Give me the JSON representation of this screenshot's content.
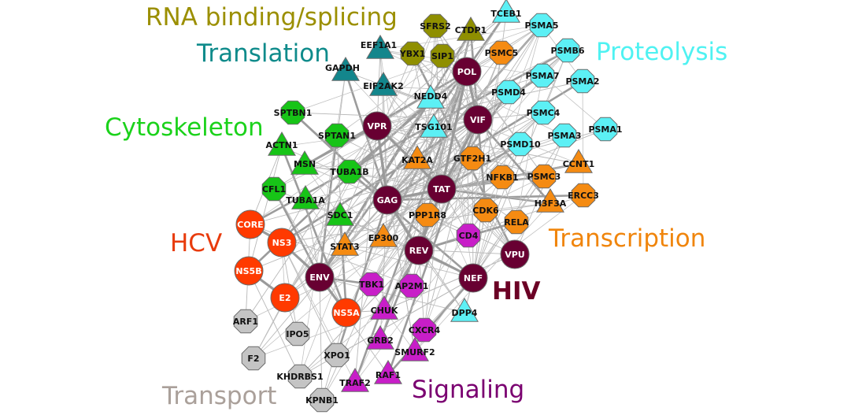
{
  "groups": {
    "rna": {
      "label": "RNA binding/splicing",
      "color": "#9b8f00"
    },
    "trans": {
      "label": "Translation",
      "color": "#0f8b8b"
    },
    "proteo": {
      "label": "Proteolysis",
      "color": "#4ff2f2"
    },
    "cyto": {
      "label": "Cytoskeleton",
      "color": "#1bd21b"
    },
    "hcv": {
      "label": "HCV",
      "color": "#e83b0c"
    },
    "transcr": {
      "label": "Transcription",
      "color": "#f0850c"
    },
    "hiv": {
      "label": "HIV",
      "color": "#6b0025"
    },
    "signal": {
      "label": "Signaling",
      "color": "#7a0070"
    },
    "transport": {
      "label": "Transport",
      "color": "#aaa09a"
    }
  },
  "node_colors": {
    "rna": "#8f8f00",
    "trans": "#13868c",
    "proteo": "#5cf0f5",
    "cyto": "#17c417",
    "hcv": "#ff3a00",
    "transcr": "#f58b12",
    "hiv": "#680032",
    "signal": "#c81ec8",
    "transport": "#c4c4c4"
  },
  "nodes": [
    {
      "id": "SFRS2",
      "g": "rna",
      "shape": "oct"
    },
    {
      "id": "CTDP1",
      "g": "rna",
      "shape": "tri"
    },
    {
      "id": "YBX1",
      "g": "rna",
      "shape": "oct"
    },
    {
      "id": "SIP1",
      "g": "rna",
      "shape": "oct"
    },
    {
      "id": "EEF1A1",
      "g": "trans",
      "shape": "tri"
    },
    {
      "id": "GAPDH",
      "g": "trans",
      "shape": "tri"
    },
    {
      "id": "EIF2AK2",
      "g": "trans",
      "shape": "tri"
    },
    {
      "id": "TCEB1",
      "g": "proteo",
      "shape": "tri"
    },
    {
      "id": "PSMA5",
      "g": "proteo",
      "shape": "oct"
    },
    {
      "id": "PSMC5",
      "g": "transcr",
      "shape": "oct"
    },
    {
      "id": "PSMB6",
      "g": "proteo",
      "shape": "oct"
    },
    {
      "id": "PSMA7",
      "g": "proteo",
      "shape": "oct"
    },
    {
      "id": "PSMA2",
      "g": "proteo",
      "shape": "oct"
    },
    {
      "id": "NEDD4",
      "g": "proteo",
      "shape": "tri"
    },
    {
      "id": "PSMD4",
      "g": "proteo",
      "shape": "oct"
    },
    {
      "id": "PSMC4",
      "g": "proteo",
      "shape": "oct"
    },
    {
      "id": "PSMA1",
      "g": "proteo",
      "shape": "oct"
    },
    {
      "id": "TSG101",
      "g": "proteo",
      "shape": "tri"
    },
    {
      "id": "PSMA3",
      "g": "proteo",
      "shape": "oct"
    },
    {
      "id": "PSMD10",
      "g": "proteo",
      "shape": "oct"
    },
    {
      "id": "DPP4",
      "g": "proteo",
      "shape": "tri"
    },
    {
      "id": "SPTBN1",
      "g": "cyto",
      "shape": "oct"
    },
    {
      "id": "ACTN1",
      "g": "cyto",
      "shape": "tri"
    },
    {
      "id": "SPTAN1",
      "g": "cyto",
      "shape": "oct"
    },
    {
      "id": "MSN",
      "g": "cyto",
      "shape": "tri"
    },
    {
      "id": "TUBA1B",
      "g": "cyto",
      "shape": "oct"
    },
    {
      "id": "CFL1",
      "g": "cyto",
      "shape": "oct"
    },
    {
      "id": "TUBA1A",
      "g": "cyto",
      "shape": "tri"
    },
    {
      "id": "SDC1",
      "g": "cyto",
      "shape": "tri"
    },
    {
      "id": "CORE",
      "g": "hcv",
      "shape": "circle"
    },
    {
      "id": "NS3",
      "g": "hcv",
      "shape": "circle"
    },
    {
      "id": "NS5B",
      "g": "hcv",
      "shape": "circle"
    },
    {
      "id": "E2",
      "g": "hcv",
      "shape": "circle"
    },
    {
      "id": "NS5A",
      "g": "hcv",
      "shape": "circle"
    },
    {
      "id": "POL",
      "g": "hiv",
      "shape": "circle"
    },
    {
      "id": "VIF",
      "g": "hiv",
      "shape": "circle"
    },
    {
      "id": "VPR",
      "g": "hiv",
      "shape": "circle"
    },
    {
      "id": "TAT",
      "g": "hiv",
      "shape": "circle"
    },
    {
      "id": "GAG",
      "g": "hiv",
      "shape": "circle"
    },
    {
      "id": "REV",
      "g": "hiv",
      "shape": "circle"
    },
    {
      "id": "ENV",
      "g": "hiv",
      "shape": "circle"
    },
    {
      "id": "NEF",
      "g": "hiv",
      "shape": "circle"
    },
    {
      "id": "VPU",
      "g": "hiv",
      "shape": "circle"
    },
    {
      "id": "KAT2A",
      "g": "transcr",
      "shape": "tri"
    },
    {
      "id": "GTF2H1",
      "g": "transcr",
      "shape": "oct"
    },
    {
      "id": "NFKB1",
      "g": "transcr",
      "shape": "oct"
    },
    {
      "id": "PSMC3",
      "g": "transcr",
      "shape": "oct"
    },
    {
      "id": "CCNT1",
      "g": "transcr",
      "shape": "tri"
    },
    {
      "id": "ERCC3",
      "g": "transcr",
      "shape": "oct"
    },
    {
      "id": "H3F3A",
      "g": "transcr",
      "shape": "tri"
    },
    {
      "id": "CDK6",
      "g": "transcr",
      "shape": "oct"
    },
    {
      "id": "RELA",
      "g": "transcr",
      "shape": "oct"
    },
    {
      "id": "PPP1R8",
      "g": "transcr",
      "shape": "oct"
    },
    {
      "id": "EP300",
      "g": "transcr",
      "shape": "tri"
    },
    {
      "id": "STAT3",
      "g": "transcr",
      "shape": "tri"
    },
    {
      "id": "CD4",
      "g": "signal",
      "shape": "oct"
    },
    {
      "id": "TBK1",
      "g": "signal",
      "shape": "oct"
    },
    {
      "id": "AP2M1",
      "g": "signal",
      "shape": "oct"
    },
    {
      "id": "CHUK",
      "g": "signal",
      "shape": "tri"
    },
    {
      "id": "CXCR4",
      "g": "signal",
      "shape": "oct"
    },
    {
      "id": "GRB2",
      "g": "signal",
      "shape": "tri"
    },
    {
      "id": "SMURF2",
      "g": "signal",
      "shape": "tri"
    },
    {
      "id": "RAF1",
      "g": "signal",
      "shape": "tri"
    },
    {
      "id": "TRAF2",
      "g": "signal",
      "shape": "tri"
    },
    {
      "id": "ARF1",
      "g": "transport",
      "shape": "oct"
    },
    {
      "id": "IPO5",
      "g": "transport",
      "shape": "oct"
    },
    {
      "id": "F2",
      "g": "transport",
      "shape": "oct"
    },
    {
      "id": "XPO1",
      "g": "transport",
      "shape": "oct"
    },
    {
      "id": "KHDRBS1",
      "g": "transport",
      "shape": "oct"
    },
    {
      "id": "KPNB1",
      "g": "transport",
      "shape": "oct"
    }
  ]
}
